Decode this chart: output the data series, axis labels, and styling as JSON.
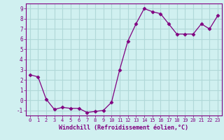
{
  "x": [
    0,
    1,
    2,
    3,
    4,
    5,
    6,
    7,
    8,
    9,
    10,
    11,
    12,
    13,
    14,
    15,
    16,
    17,
    18,
    19,
    20,
    21,
    22,
    23
  ],
  "y": [
    2.5,
    2.3,
    0.1,
    -0.9,
    -0.7,
    -0.8,
    -0.8,
    -1.2,
    -1.1,
    -1.0,
    -0.2,
    3.0,
    5.8,
    7.5,
    9.0,
    8.7,
    8.5,
    7.5,
    6.5,
    6.5,
    6.5,
    7.5,
    7.0,
    8.3
  ],
  "line_color": "#800080",
  "marker": "D",
  "marker_size": 2.5,
  "bg_color": "#d0f0f0",
  "grid_color": "#b0d8d8",
  "xlabel": "Windchill (Refroidissement éolien,°C)",
  "xlim": [
    -0.5,
    23.5
  ],
  "ylim": [
    -1.5,
    9.5
  ],
  "yticks": [
    -1,
    0,
    1,
    2,
    3,
    4,
    5,
    6,
    7,
    8,
    9
  ],
  "xticks": [
    0,
    1,
    2,
    3,
    4,
    5,
    6,
    7,
    8,
    9,
    10,
    11,
    12,
    13,
    14,
    15,
    16,
    17,
    18,
    19,
    20,
    21,
    22,
    23
  ],
  "tick_color": "#800080",
  "label_color": "#800080",
  "spine_color": "#800080"
}
